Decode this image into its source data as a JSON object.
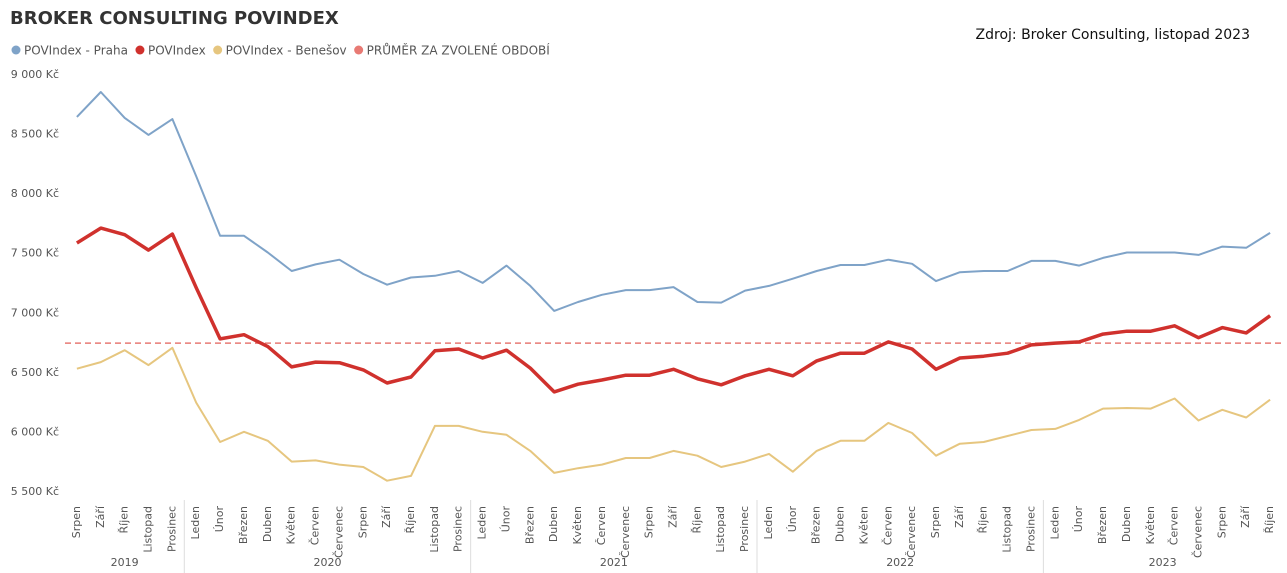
{
  "chart_data": {
    "type": "line",
    "title": "BROKER CONSULTING POVINDEX",
    "source": "Zdroj: Broker Consulting, listopad 2023",
    "categories": [
      "Srpen",
      "Září",
      "Říjen",
      "Listopad",
      "Prosinec",
      "Leden",
      "Únor",
      "Březen",
      "Duben",
      "Květen",
      "Červen",
      "Červenec",
      "Srpen",
      "Září",
      "Říjen",
      "Listopad",
      "Prosinec",
      "Leden",
      "Únor",
      "Březen",
      "Duben",
      "Květen",
      "Červen",
      "Červenec",
      "Srpen",
      "Září",
      "Říjen",
      "Listopad",
      "Prosinec",
      "Leden",
      "Únor",
      "Březen",
      "Duben",
      "Květen",
      "Červen",
      "Červenec",
      "Srpen",
      "Září",
      "Říjen",
      "Listopad",
      "Prosinec",
      "Leden",
      "Únor",
      "Březen",
      "Duben",
      "Květen",
      "Červen",
      "Červenec",
      "Srpen",
      "Září",
      "Říjen"
    ],
    "category_years": [
      "2019",
      "2019",
      "2019",
      "2019",
      "2019",
      "2020",
      "2020",
      "2020",
      "2020",
      "2020",
      "2020",
      "2020",
      "2020",
      "2020",
      "2020",
      "2020",
      "2020",
      "2021",
      "2021",
      "2021",
      "2021",
      "2021",
      "2021",
      "2021",
      "2021",
      "2021",
      "2021",
      "2021",
      "2021",
      "2022",
      "2022",
      "2022",
      "2022",
      "2022",
      "2022",
      "2022",
      "2022",
      "2022",
      "2022",
      "2022",
      "2022",
      "2023",
      "2023",
      "2023",
      "2023",
      "2023",
      "2023",
      "2023",
      "2023",
      "2023",
      "2023"
    ],
    "series": [
      {
        "name": "POVIndex - Praha",
        "color": "#7fa3c8",
        "values": [
          8648,
          8857,
          8640,
          8497,
          8630,
          8150,
          7650,
          7650,
          7510,
          7355,
          7410,
          7450,
          7330,
          7240,
          7300,
          7315,
          7355,
          7255,
          7400,
          7230,
          7020,
          7095,
          7155,
          7195,
          7195,
          7220,
          7095,
          7090,
          7190,
          7230,
          7290,
          7355,
          7405,
          7405,
          7450,
          7415,
          7270,
          7345,
          7355,
          7355,
          7440,
          7440,
          7400,
          7465,
          7510,
          7510,
          7510,
          7490,
          7560,
          7550,
          7675
        ]
      },
      {
        "name": "POVIndex",
        "color": "#d0312d",
        "values": [
          7590,
          7715,
          7660,
          7530,
          7665,
          7215,
          6785,
          6820,
          6720,
          6550,
          6590,
          6585,
          6525,
          6415,
          6465,
          6685,
          6700,
          6625,
          6690,
          6540,
          6340,
          6405,
          6440,
          6480,
          6480,
          6530,
          6450,
          6400,
          6475,
          6530,
          6475,
          6600,
          6665,
          6665,
          6760,
          6700,
          6530,
          6625,
          6640,
          6665,
          6735,
          6750,
          6760,
          6825,
          6850,
          6850,
          6895,
          6795,
          6880,
          6835,
          6980
        ]
      },
      {
        "name": "POVIndex - Benešov",
        "color": "#e6c67f",
        "values": [
          6535,
          6590,
          6690,
          6565,
          6710,
          6250,
          5920,
          6005,
          5930,
          5755,
          5765,
          5730,
          5710,
          5595,
          5635,
          6055,
          6055,
          6005,
          5980,
          5845,
          5660,
          5700,
          5730,
          5785,
          5785,
          5845,
          5805,
          5710,
          5755,
          5820,
          5670,
          5845,
          5930,
          5930,
          6080,
          5995,
          5805,
          5905,
          5920,
          5970,
          6020,
          6030,
          6105,
          6200,
          6205,
          6200,
          6285,
          6100,
          6190,
          6125,
          6275
        ]
      }
    ],
    "reference_lines": [
      {
        "name": "PRŮMĚR ZA ZVOLENÉ OBDOBÍ",
        "color": "#e87a74",
        "value": 6750
      }
    ],
    "ylim": [
      5500,
      9000
    ],
    "yticks": [
      {
        "value": 5500,
        "label": "5 500 Kč"
      },
      {
        "value": 6000,
        "label": "6 000 Kč"
      },
      {
        "value": 6500,
        "label": "6 500 Kč"
      },
      {
        "value": 7000,
        "label": "7 000 Kč"
      },
      {
        "value": 7500,
        "label": "7 500 Kč"
      },
      {
        "value": 8000,
        "label": "8 000 Kč"
      },
      {
        "value": 8500,
        "label": "8 500 Kč"
      },
      {
        "value": 9000,
        "label": "9 000 Kč"
      }
    ],
    "grid": false
  }
}
